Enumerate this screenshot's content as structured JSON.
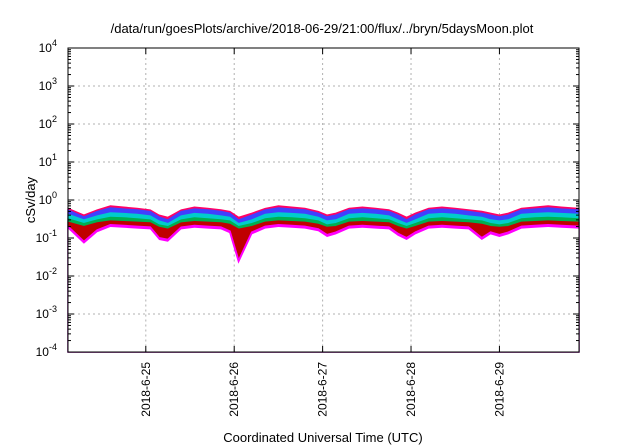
{
  "chart_data": {
    "type": "area",
    "title": "/data/run/goesPlots/archive/2018-06-29/21:00/flux/../bryn/5daysMoon.plot",
    "xlabel": "Coordinated Universal Time (UTC)",
    "ylabel": "cSv/day",
    "yscale": "log",
    "ylim": [
      0.0001,
      10000
    ],
    "xlim": [
      24.12,
      29.9
    ],
    "x_unit": "day of June 2018 (UTC)",
    "grid": true,
    "legend": "none",
    "x_ticks": [
      {
        "value": 25,
        "label": "2018-6-25"
      },
      {
        "value": 26,
        "label": "2018-6-26"
      },
      {
        "value": 27,
        "label": "2018-6-27"
      },
      {
        "value": 28,
        "label": "2018-6-28"
      },
      {
        "value": 29,
        "label": "2018-6-29"
      }
    ],
    "y_ticks": [
      {
        "value": 0.0001,
        "base": "10",
        "exp": "-4"
      },
      {
        "value": 0.001,
        "base": "10",
        "exp": "-3"
      },
      {
        "value": 0.01,
        "base": "10",
        "exp": "-2"
      },
      {
        "value": 0.1,
        "base": "10",
        "exp": "-1"
      },
      {
        "value": 1,
        "base": "10",
        "exp": "0"
      },
      {
        "value": 10,
        "base": "10",
        "exp": "1"
      },
      {
        "value": 100,
        "base": "10",
        "exp": "2"
      },
      {
        "value": 1000,
        "base": "10",
        "exp": "3"
      },
      {
        "value": 10000,
        "base": "10",
        "exp": "4"
      }
    ],
    "x": [
      24.12,
      24.3,
      24.45,
      24.6,
      24.75,
      24.9,
      25.05,
      25.15,
      25.25,
      25.4,
      25.55,
      25.7,
      25.85,
      25.95,
      26.05,
      26.2,
      26.35,
      26.5,
      26.65,
      26.8,
      26.95,
      27.05,
      27.15,
      27.3,
      27.45,
      27.6,
      27.75,
      27.85,
      27.95,
      28.05,
      28.2,
      28.35,
      28.5,
      28.65,
      28.8,
      28.9,
      29.0,
      29.1,
      29.25,
      29.4,
      29.55,
      29.7,
      29.9
    ],
    "series": [
      {
        "color": "#ff0066",
        "values": [
          0.6,
          0.4,
          0.55,
          0.7,
          0.65,
          0.6,
          0.55,
          0.4,
          0.35,
          0.55,
          0.65,
          0.6,
          0.55,
          0.5,
          0.35,
          0.45,
          0.6,
          0.7,
          0.65,
          0.6,
          0.5,
          0.4,
          0.45,
          0.6,
          0.65,
          0.6,
          0.55,
          0.45,
          0.35,
          0.45,
          0.6,
          0.65,
          0.6,
          0.55,
          0.5,
          0.45,
          0.4,
          0.45,
          0.6,
          0.65,
          0.7,
          0.65,
          0.6
        ]
      },
      {
        "color": "#4040ff",
        "values": [
          0.55,
          0.36,
          0.5,
          0.62,
          0.58,
          0.55,
          0.5,
          0.36,
          0.3,
          0.5,
          0.58,
          0.55,
          0.5,
          0.45,
          0.3,
          0.4,
          0.55,
          0.62,
          0.58,
          0.55,
          0.45,
          0.36,
          0.4,
          0.55,
          0.58,
          0.55,
          0.5,
          0.4,
          0.3,
          0.4,
          0.55,
          0.58,
          0.55,
          0.5,
          0.45,
          0.4,
          0.36,
          0.4,
          0.55,
          0.58,
          0.62,
          0.58,
          0.55
        ]
      },
      {
        "color": "#00cccc",
        "values": [
          0.42,
          0.3,
          0.38,
          0.46,
          0.44,
          0.42,
          0.38,
          0.28,
          0.24,
          0.38,
          0.44,
          0.42,
          0.38,
          0.35,
          0.24,
          0.3,
          0.42,
          0.46,
          0.44,
          0.42,
          0.35,
          0.28,
          0.3,
          0.42,
          0.44,
          0.42,
          0.38,
          0.3,
          0.24,
          0.3,
          0.42,
          0.44,
          0.42,
          0.38,
          0.35,
          0.3,
          0.28,
          0.3,
          0.42,
          0.44,
          0.46,
          0.44,
          0.42
        ]
      },
      {
        "color": "#00b050",
        "values": [
          0.32,
          0.24,
          0.3,
          0.35,
          0.34,
          0.32,
          0.3,
          0.22,
          0.2,
          0.3,
          0.34,
          0.32,
          0.3,
          0.28,
          0.2,
          0.24,
          0.32,
          0.35,
          0.34,
          0.32,
          0.28,
          0.22,
          0.24,
          0.32,
          0.34,
          0.32,
          0.3,
          0.24,
          0.2,
          0.24,
          0.32,
          0.34,
          0.32,
          0.3,
          0.28,
          0.24,
          0.22,
          0.24,
          0.32,
          0.34,
          0.35,
          0.34,
          0.32
        ]
      },
      {
        "color": "#c00000",
        "values": [
          0.26,
          0.2,
          0.25,
          0.28,
          0.27,
          0.26,
          0.25,
          0.19,
          0.17,
          0.25,
          0.27,
          0.26,
          0.25,
          0.23,
          0.17,
          0.2,
          0.26,
          0.28,
          0.27,
          0.26,
          0.23,
          0.19,
          0.2,
          0.26,
          0.27,
          0.26,
          0.25,
          0.2,
          0.17,
          0.2,
          0.26,
          0.27,
          0.26,
          0.25,
          0.23,
          0.2,
          0.19,
          0.2,
          0.26,
          0.27,
          0.28,
          0.27,
          0.26
        ]
      },
      {
        "color": "#ff00ff",
        "values": [
          0.2,
          0.08,
          0.16,
          0.22,
          0.21,
          0.2,
          0.19,
          0.1,
          0.09,
          0.19,
          0.21,
          0.2,
          0.19,
          0.15,
          0.025,
          0.14,
          0.2,
          0.22,
          0.21,
          0.2,
          0.17,
          0.12,
          0.14,
          0.2,
          0.21,
          0.2,
          0.19,
          0.13,
          0.1,
          0.14,
          0.2,
          0.21,
          0.2,
          0.19,
          0.1,
          0.14,
          0.12,
          0.14,
          0.2,
          0.21,
          0.22,
          0.21,
          0.2
        ]
      }
    ]
  }
}
